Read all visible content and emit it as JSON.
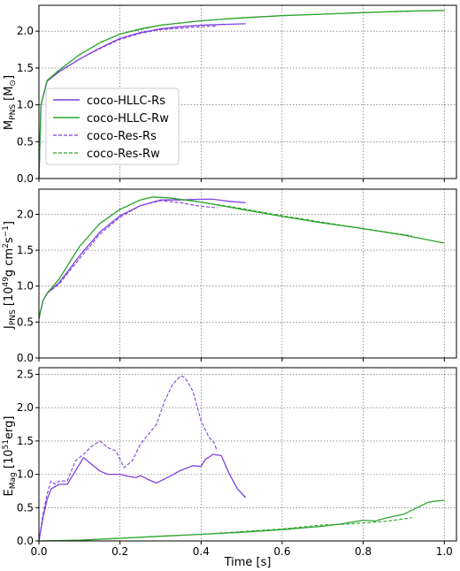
{
  "chart_data": [
    {
      "type": "line",
      "ylabel": "M_PNS [M_⊙]",
      "xlim": [
        0.0,
        1.03
      ],
      "ylim": [
        0.0,
        2.35
      ],
      "yticks": [
        "0.0",
        "0.5",
        "1.0",
        "1.5",
        "2.0"
      ],
      "grid": true,
      "legend": {
        "placement": "center-left",
        "entries": [
          "coco-HLLC-Rs",
          "coco-HLLC-Rw",
          "coco-Res-Rs",
          "coco-Res-Rw"
        ]
      },
      "series": [
        {
          "name": "coco-HLLC-Rs",
          "color": "#7f3fe0",
          "dashed": false,
          "points": [
            [
              0.0,
              0.0
            ],
            [
              0.005,
              1.0
            ],
            [
              0.02,
              1.32
            ],
            [
              0.05,
              1.45
            ],
            [
              0.1,
              1.62
            ],
            [
              0.15,
              1.77
            ],
            [
              0.2,
              1.9
            ],
            [
              0.25,
              1.98
            ],
            [
              0.3,
              2.03
            ],
            [
              0.35,
              2.06
            ],
            [
              0.4,
              2.08
            ],
            [
              0.45,
              2.09
            ],
            [
              0.51,
              2.1
            ]
          ]
        },
        {
          "name": "coco-HLLC-Rw",
          "color": "#2ca52c",
          "dashed": false,
          "points": [
            [
              0.0,
              0.0
            ],
            [
              0.005,
              1.0
            ],
            [
              0.02,
              1.33
            ],
            [
              0.05,
              1.47
            ],
            [
              0.1,
              1.68
            ],
            [
              0.15,
              1.84
            ],
            [
              0.2,
              1.96
            ],
            [
              0.25,
              2.03
            ],
            [
              0.3,
              2.08
            ],
            [
              0.4,
              2.14
            ],
            [
              0.5,
              2.18
            ],
            [
              0.6,
              2.21
            ],
            [
              0.7,
              2.23
            ],
            [
              0.8,
              2.25
            ],
            [
              0.9,
              2.27
            ],
            [
              1.0,
              2.28
            ]
          ]
        },
        {
          "name": "coco-Res-Rs",
          "color": "#7f3fe0",
          "dashed": true,
          "points": [
            [
              0.0,
              0.0
            ],
            [
              0.005,
              1.0
            ],
            [
              0.02,
              1.32
            ],
            [
              0.05,
              1.45
            ],
            [
              0.1,
              1.62
            ],
            [
              0.15,
              1.76
            ],
            [
              0.2,
              1.89
            ],
            [
              0.25,
              1.97
            ],
            [
              0.3,
              2.02
            ],
            [
              0.35,
              2.04
            ],
            [
              0.4,
              2.06
            ],
            [
              0.44,
              2.07
            ]
          ]
        },
        {
          "name": "coco-Res-Rw",
          "color": "#2ca52c",
          "dashed": true,
          "points": [
            [
              0.0,
              0.0
            ],
            [
              0.005,
              1.0
            ],
            [
              0.02,
              1.33
            ],
            [
              0.05,
              1.47
            ],
            [
              0.1,
              1.68
            ],
            [
              0.15,
              1.84
            ],
            [
              0.2,
              1.96
            ],
            [
              0.3,
              2.08
            ],
            [
              0.4,
              2.14
            ],
            [
              0.5,
              2.18
            ],
            [
              0.6,
              2.21
            ],
            [
              0.7,
              2.23
            ],
            [
              0.8,
              2.25
            ],
            [
              0.92,
              2.27
            ]
          ]
        }
      ]
    },
    {
      "type": "line",
      "ylabel": "J_PNS [10^49 g cm^2 s^-1]",
      "xlim": [
        0.0,
        1.03
      ],
      "ylim": [
        0.0,
        2.35
      ],
      "yticks": [
        "0.0",
        "0.5",
        "1.0",
        "1.5",
        "2.0"
      ],
      "grid": true,
      "series": [
        {
          "name": "coco-HLLC-Rs",
          "color": "#7f3fe0",
          "dashed": false,
          "points": [
            [
              0.0,
              0.55
            ],
            [
              0.01,
              0.8
            ],
            [
              0.02,
              0.9
            ],
            [
              0.05,
              1.05
            ],
            [
              0.1,
              1.42
            ],
            [
              0.15,
              1.75
            ],
            [
              0.2,
              1.98
            ],
            [
              0.25,
              2.12
            ],
            [
              0.3,
              2.2
            ],
            [
              0.35,
              2.2
            ],
            [
              0.4,
              2.21
            ],
            [
              0.43,
              2.21
            ],
            [
              0.47,
              2.18
            ],
            [
              0.51,
              2.16
            ]
          ]
        },
        {
          "name": "coco-HLLC-Rw",
          "color": "#2ca52c",
          "dashed": false,
          "points": [
            [
              0.0,
              0.55
            ],
            [
              0.01,
              0.8
            ],
            [
              0.02,
              0.9
            ],
            [
              0.05,
              1.1
            ],
            [
              0.1,
              1.55
            ],
            [
              0.15,
              1.87
            ],
            [
              0.2,
              2.07
            ],
            [
              0.25,
              2.2
            ],
            [
              0.28,
              2.24
            ],
            [
              0.32,
              2.23
            ],
            [
              0.4,
              2.17
            ],
            [
              0.5,
              2.07
            ],
            [
              0.6,
              1.97
            ],
            [
              0.7,
              1.88
            ],
            [
              0.8,
              1.8
            ],
            [
              0.9,
              1.71
            ],
            [
              1.0,
              1.6
            ]
          ]
        },
        {
          "name": "coco-Res-Rs",
          "color": "#7f3fe0",
          "dashed": true,
          "points": [
            [
              0.0,
              0.55
            ],
            [
              0.01,
              0.8
            ],
            [
              0.02,
              0.9
            ],
            [
              0.05,
              1.03
            ],
            [
              0.1,
              1.38
            ],
            [
              0.15,
              1.72
            ],
            [
              0.2,
              1.96
            ],
            [
              0.25,
              2.12
            ],
            [
              0.3,
              2.19
            ],
            [
              0.35,
              2.16
            ],
            [
              0.4,
              2.11
            ],
            [
              0.44,
              2.09
            ]
          ]
        },
        {
          "name": "coco-Res-Rw",
          "color": "#2ca52c",
          "dashed": true,
          "points": [
            [
              0.0,
              0.55
            ],
            [
              0.01,
              0.8
            ],
            [
              0.02,
              0.9
            ],
            [
              0.05,
              1.1
            ],
            [
              0.1,
              1.55
            ],
            [
              0.15,
              1.87
            ],
            [
              0.2,
              2.07
            ],
            [
              0.25,
              2.2
            ],
            [
              0.28,
              2.24
            ],
            [
              0.32,
              2.23
            ],
            [
              0.4,
              2.17
            ],
            [
              0.5,
              2.08
            ],
            [
              0.6,
              1.98
            ],
            [
              0.7,
              1.89
            ],
            [
              0.8,
              1.8
            ],
            [
              0.92,
              1.7
            ]
          ]
        }
      ]
    },
    {
      "type": "line",
      "xlabel": "Time [s]",
      "ylabel": "E_Mag [10^51 erg]",
      "xlim": [
        0.0,
        1.03
      ],
      "ylim": [
        0.0,
        2.6
      ],
      "yticks": [
        "0.0",
        "0.5",
        "1.0",
        "1.5",
        "2.0",
        "2.5"
      ],
      "xticks": [
        "0.0",
        "0.2",
        "0.4",
        "0.6",
        "0.8",
        "1.0"
      ],
      "grid": true,
      "series": [
        {
          "name": "coco-HLLC-Rs",
          "color": "#7f3fe0",
          "dashed": false,
          "points": [
            [
              0.0,
              0.0
            ],
            [
              0.01,
              0.35
            ],
            [
              0.02,
              0.62
            ],
            [
              0.03,
              0.78
            ],
            [
              0.05,
              0.85
            ],
            [
              0.07,
              0.85
            ],
            [
              0.09,
              1.05
            ],
            [
              0.11,
              1.25
            ],
            [
              0.13,
              1.15
            ],
            [
              0.15,
              1.05
            ],
            [
              0.17,
              1.0
            ],
            [
              0.2,
              1.0
            ],
            [
              0.22,
              0.97
            ],
            [
              0.24,
              0.95
            ],
            [
              0.25,
              0.98
            ],
            [
              0.27,
              0.92
            ],
            [
              0.29,
              0.87
            ],
            [
              0.32,
              0.96
            ],
            [
              0.35,
              1.06
            ],
            [
              0.38,
              1.13
            ],
            [
              0.4,
              1.12
            ],
            [
              0.41,
              1.22
            ],
            [
              0.43,
              1.3
            ],
            [
              0.45,
              1.28
            ],
            [
              0.47,
              1.0
            ],
            [
              0.49,
              0.78
            ],
            [
              0.51,
              0.65
            ]
          ]
        },
        {
          "name": "coco-HLLC-Rw",
          "color": "#2ca52c",
          "dashed": false,
          "points": [
            [
              0.0,
              0.0
            ],
            [
              0.1,
              0.01
            ],
            [
              0.2,
              0.04
            ],
            [
              0.3,
              0.07
            ],
            [
              0.4,
              0.1
            ],
            [
              0.5,
              0.13
            ],
            [
              0.6,
              0.17
            ],
            [
              0.7,
              0.22
            ],
            [
              0.75,
              0.26
            ],
            [
              0.8,
              0.31
            ],
            [
              0.83,
              0.3
            ],
            [
              0.86,
              0.35
            ],
            [
              0.9,
              0.4
            ],
            [
              0.93,
              0.49
            ],
            [
              0.96,
              0.58
            ],
            [
              0.98,
              0.6
            ],
            [
              1.0,
              0.61
            ]
          ]
        },
        {
          "name": "coco-Res-Rs",
          "color": "#7f3fe0",
          "dashed": true,
          "points": [
            [
              0.0,
              0.0
            ],
            [
              0.01,
              0.4
            ],
            [
              0.02,
              0.7
            ],
            [
              0.03,
              0.9
            ],
            [
              0.04,
              0.85
            ],
            [
              0.05,
              0.9
            ],
            [
              0.07,
              0.9
            ],
            [
              0.09,
              1.2
            ],
            [
              0.11,
              1.3
            ],
            [
              0.13,
              1.42
            ],
            [
              0.15,
              1.5
            ],
            [
              0.17,
              1.4
            ],
            [
              0.19,
              1.35
            ],
            [
              0.21,
              1.1
            ],
            [
              0.23,
              1.2
            ],
            [
              0.25,
              1.45
            ],
            [
              0.27,
              1.6
            ],
            [
              0.29,
              1.75
            ],
            [
              0.31,
              2.1
            ],
            [
              0.33,
              2.35
            ],
            [
              0.35,
              2.48
            ],
            [
              0.36,
              2.45
            ],
            [
              0.38,
              2.25
            ],
            [
              0.4,
              1.8
            ],
            [
              0.42,
              1.55
            ],
            [
              0.43,
              1.5
            ],
            [
              0.44,
              1.35
            ]
          ]
        },
        {
          "name": "coco-Res-Rw",
          "color": "#2ca52c",
          "dashed": true,
          "points": [
            [
              0.0,
              0.0
            ],
            [
              0.1,
              0.01
            ],
            [
              0.2,
              0.04
            ],
            [
              0.3,
              0.07
            ],
            [
              0.4,
              0.1
            ],
            [
              0.5,
              0.14
            ],
            [
              0.6,
              0.18
            ],
            [
              0.7,
              0.24
            ],
            [
              0.75,
              0.25
            ],
            [
              0.8,
              0.27
            ],
            [
              0.85,
              0.29
            ],
            [
              0.9,
              0.33
            ],
            [
              0.92,
              0.35
            ]
          ]
        }
      ]
    }
  ]
}
